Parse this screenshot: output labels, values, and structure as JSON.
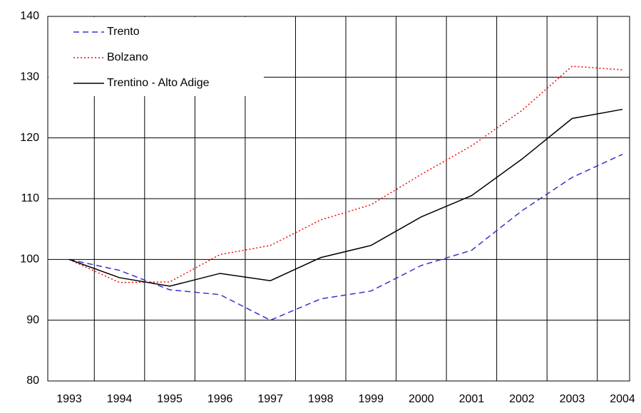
{
  "chart_data": {
    "type": "line",
    "categories": [
      "1993",
      "1994",
      "1995",
      "1996",
      "1997",
      "1998",
      "1999",
      "2000",
      "2001",
      "2002",
      "2003",
      "2004"
    ],
    "series": [
      {
        "name": "Trento",
        "color": "#3333cc",
        "dash": "dashed",
        "values": [
          100,
          98.2,
          95,
          94.2,
          90,
          93.5,
          94.8,
          99,
          101.5,
          108,
          113.5,
          117.3
        ]
      },
      {
        "name": "Bolzano",
        "color": "#ff0000",
        "dash": "dotted",
        "values": [
          100,
          96.2,
          96.3,
          100.8,
          102.3,
          106.5,
          109,
          114,
          118.7,
          124.5,
          131.8,
          131.2
        ]
      },
      {
        "name": "Trentino - Alto Adige",
        "color": "#000000",
        "dash": "solid",
        "values": [
          100,
          97,
          95.6,
          97.7,
          96.5,
          100.3,
          102.3,
          107,
          110.5,
          116.5,
          123.2,
          124.7
        ]
      }
    ],
    "ylim": [
      80,
      140
    ],
    "yticks": [
      80,
      90,
      100,
      110,
      120,
      130,
      140
    ],
    "grid": true,
    "legend": "upper-left"
  }
}
